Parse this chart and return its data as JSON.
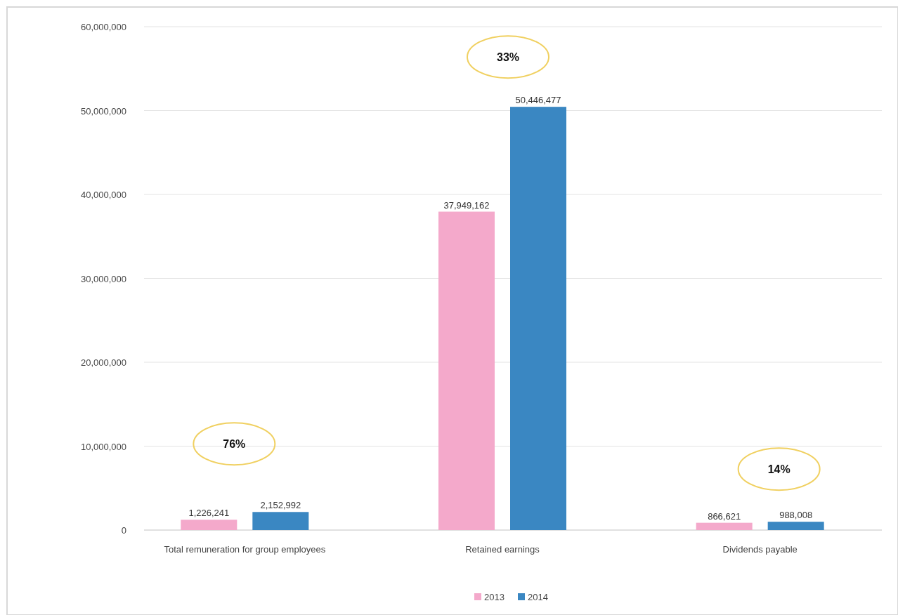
{
  "chart_data": {
    "type": "bar",
    "categories": [
      "Total remuneration for group employees",
      "Retained earnings",
      "Dividends payable"
    ],
    "series": [
      {
        "name": "2013",
        "color": "#f4a9cb",
        "values": [
          1226241,
          37949162,
          866621
        ],
        "value_labels": [
          "1,226,241",
          "37,949,162",
          "866,621"
        ]
      },
      {
        "name": "2014",
        "color": "#3a87c2",
        "values": [
          2152992,
          50446477,
          988008
        ],
        "value_labels": [
          "2,152,992",
          "50,446,477",
          "988,008"
        ]
      }
    ],
    "ylim": [
      0,
      60000000
    ],
    "yticks": [
      {
        "value": 0,
        "label": "0"
      },
      {
        "value": 10000000,
        "label": "10,000,000"
      },
      {
        "value": 20000000,
        "label": "20,000,000"
      },
      {
        "value": 30000000,
        "label": "30,000,000"
      },
      {
        "value": 40000000,
        "label": "40,000,000"
      },
      {
        "value": 50000000,
        "label": "50,000,000"
      },
      {
        "value": 60000000,
        "label": "60,000,000"
      }
    ],
    "grid": "y",
    "legend": "bottom",
    "annotations": [
      "76%",
      "33%",
      "14%"
    ]
  }
}
